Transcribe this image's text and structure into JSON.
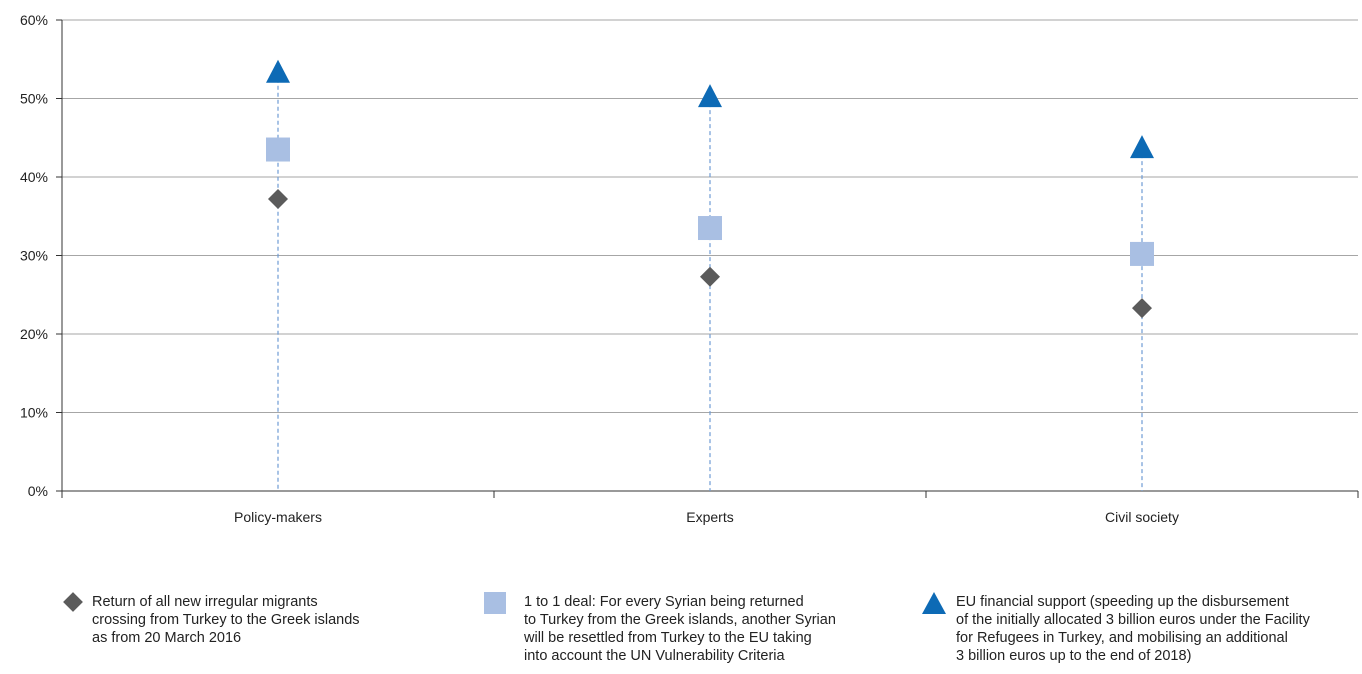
{
  "chart_data": {
    "type": "scatter",
    "categories": [
      "Policy-makers",
      "Experts",
      "Civil society"
    ],
    "ylim": [
      0,
      60
    ],
    "yticks": [
      "0%",
      "10%",
      "20%",
      "30%",
      "40%",
      "50%",
      "60%"
    ],
    "ytick_values": [
      0,
      10,
      20,
      30,
      40,
      50,
      60
    ],
    "grid": true,
    "legend_position": "bottom",
    "series": [
      {
        "key": "return",
        "name": "Return of all new irregular migrants\ncrossing from Turkey to the Greek islands\nas from 20 March 2016",
        "marker": "diamond",
        "color": "#5b5b5b",
        "values": [
          37.2,
          27.3,
          23.3
        ]
      },
      {
        "key": "one_to_one",
        "name": "1 to 1 deal: For every Syrian being returned\nto Turkey from the Greek islands, another Syrian\nwill be resettled from Turkey to the EU taking\ninto account the UN Vulnerability Criteria",
        "marker": "square",
        "color": "#a9bfe3",
        "values": [
          43.5,
          33.5,
          30.2
        ]
      },
      {
        "key": "financial",
        "name": "EU financial support (speeding up the disbursement\nof the initially allocated 3 billion euros under the Facility\nfor Refugees in Turkey, and mobilising an additional\n3 billion euros up to the end of 2018)",
        "marker": "triangle",
        "color": "#0d6ab5",
        "values": [
          53.4,
          50.3,
          43.8
        ]
      }
    ],
    "stem_color": "#6f9bd4"
  }
}
